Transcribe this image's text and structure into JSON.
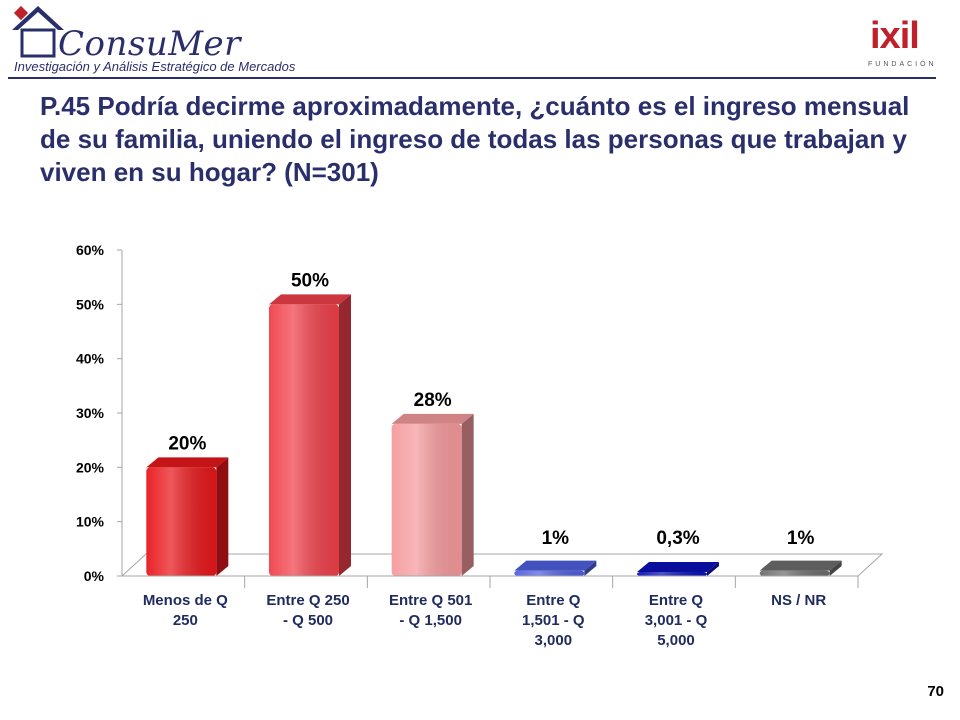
{
  "header": {
    "logo_name": "ConsuMer",
    "logo_tagline": "Investigación y Análisis Estratégico de Mercados",
    "partner_logo": "ixil",
    "partner_subtitle": "FUNDACIÓN"
  },
  "title": "P.45 Podría decirme aproximadamente, ¿cuánto es el ingreso mensual de su familia, uniendo el ingreso de todas las personas que trabajan y viven en su hogar? (N=301)",
  "page_number": "70",
  "chart_data": {
    "type": "bar",
    "categories": [
      [
        "Menos de Q",
        "250"
      ],
      [
        "Entre Q 250",
        "- Q 500"
      ],
      [
        "Entre Q 501",
        "- Q 1,500"
      ],
      [
        "Entre Q",
        "1,501 - Q",
        "3,000"
      ],
      [
        "Entre Q",
        "3,001  - Q",
        "5,000"
      ],
      [
        "NS / NR"
      ]
    ],
    "values": [
      20,
      50,
      28,
      1,
      0.3,
      1
    ],
    "data_labels": [
      "20%",
      "50%",
      "28%",
      "1%",
      "0,3%",
      "1%"
    ],
    "colors": [
      "#e8171b",
      "#f0404a",
      "#f59a9d",
      "#4f5fe0",
      "#0a10b8",
      "#6d6d6d"
    ],
    "yticks": [
      "0%",
      "10%",
      "20%",
      "30%",
      "40%",
      "50%",
      "60%"
    ],
    "ylim": [
      0,
      60
    ],
    "grid": false,
    "style": "3d-cylinder"
  }
}
